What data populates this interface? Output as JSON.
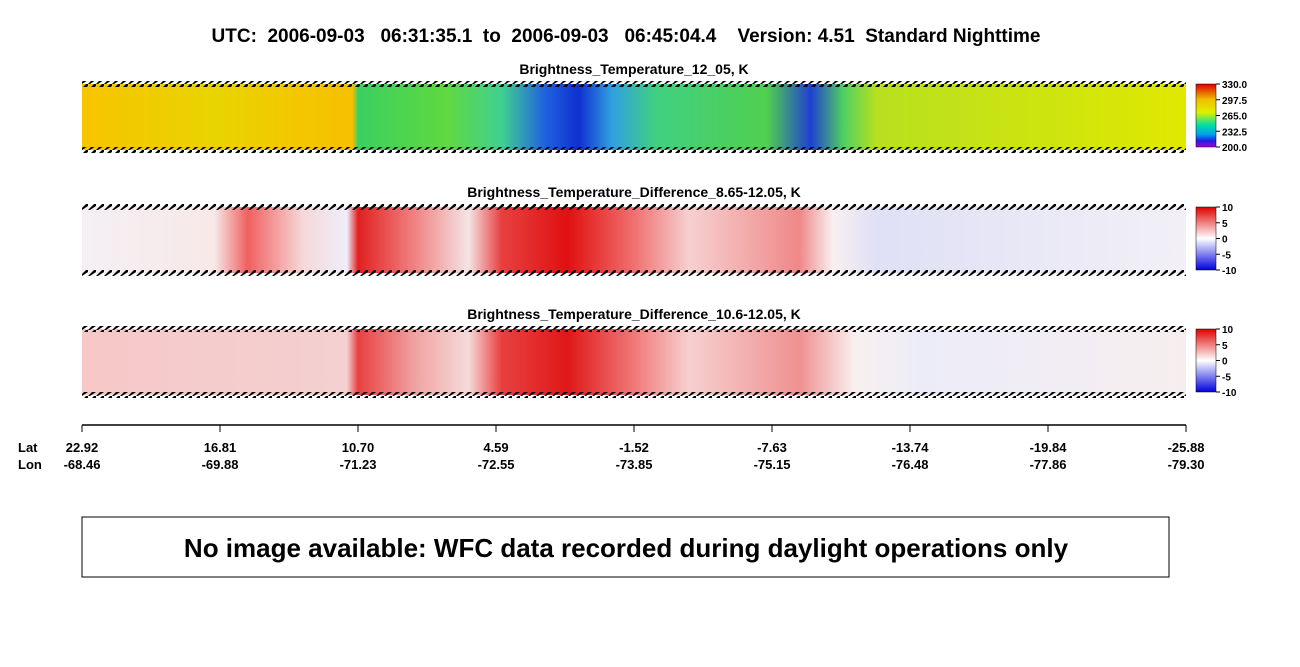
{
  "header": {
    "title": "UTC:  2006-09-03   06:31:35.1  to  2006-09-03   06:45:04.4    Version: 4.51  Standard Nighttime"
  },
  "panels": [
    {
      "title": "Brightness_Temperature_12_05, K",
      "colorbar": [
        "330.0",
        "297.5",
        "265.0",
        "232.5",
        "200.0"
      ]
    },
    {
      "title": "Brightness_Temperature_Difference_8.65-12.05, K",
      "colorbar": [
        "10",
        "5",
        "0",
        "-5",
        "-10"
      ]
    },
    {
      "title": "Brightness_Temperature_Difference_10.6-12.05, K",
      "colorbar": [
        "10",
        "5",
        "0",
        "-5",
        "-10"
      ]
    }
  ],
  "axis": {
    "row_labels": [
      "Lat",
      "Lon"
    ],
    "ticks": [
      {
        "lat": "22.92",
        "lon": "-68.46"
      },
      {
        "lat": "16.81",
        "lon": "-69.88"
      },
      {
        "lat": "10.70",
        "lon": "-71.23"
      },
      {
        "lat": "4.59",
        "lon": "-72.55"
      },
      {
        "lat": "-1.52",
        "lon": "-73.85"
      },
      {
        "lat": "-7.63",
        "lon": "-75.15"
      },
      {
        "lat": "-13.74",
        "lon": "-76.48"
      },
      {
        "lat": "-19.84",
        "lon": "-77.86"
      },
      {
        "lat": "-25.88",
        "lon": "-79.30"
      }
    ]
  },
  "notice": "No image available: WFC data recorded during daylight operations only"
}
